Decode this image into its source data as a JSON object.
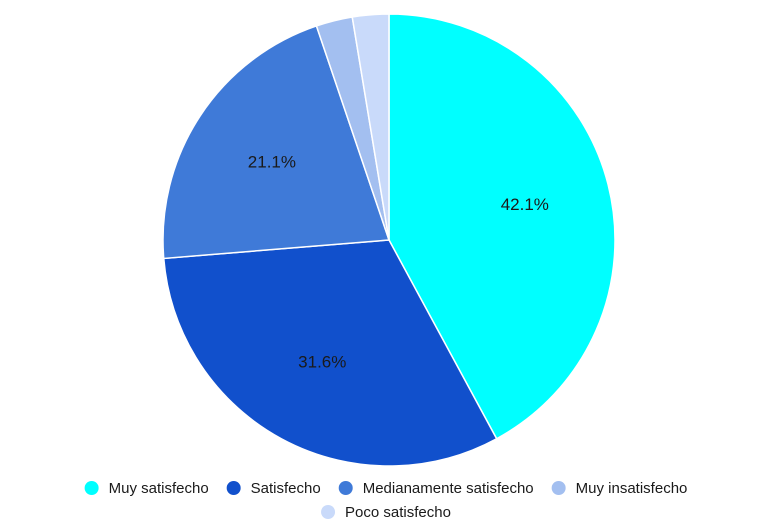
{
  "chart_data": {
    "type": "pie",
    "title": "",
    "slices": [
      {
        "name": "Muy satisfecho",
        "value": 42.1,
        "color": "#00ffff",
        "label": "42.1%"
      },
      {
        "name": "Satisfecho",
        "value": 31.6,
        "color": "#1150cc",
        "label": "31.6%"
      },
      {
        "name": "Medianamente satisfecho",
        "value": 21.1,
        "color": "#3f7ad8",
        "label": "21.1%"
      },
      {
        "name": "Muy insatisfecho",
        "value": 2.6,
        "color": "#a3bff0",
        "label": ""
      },
      {
        "name": "Poco satisfecho",
        "value": 2.6,
        "color": "#c9dafa",
        "label": ""
      }
    ],
    "legend": {
      "position": "bottom",
      "items": [
        "Muy satisfecho",
        "Satisfecho",
        "Medianamente satisfecho",
        "Muy insatisfecho",
        "Poco satisfecho"
      ]
    }
  }
}
